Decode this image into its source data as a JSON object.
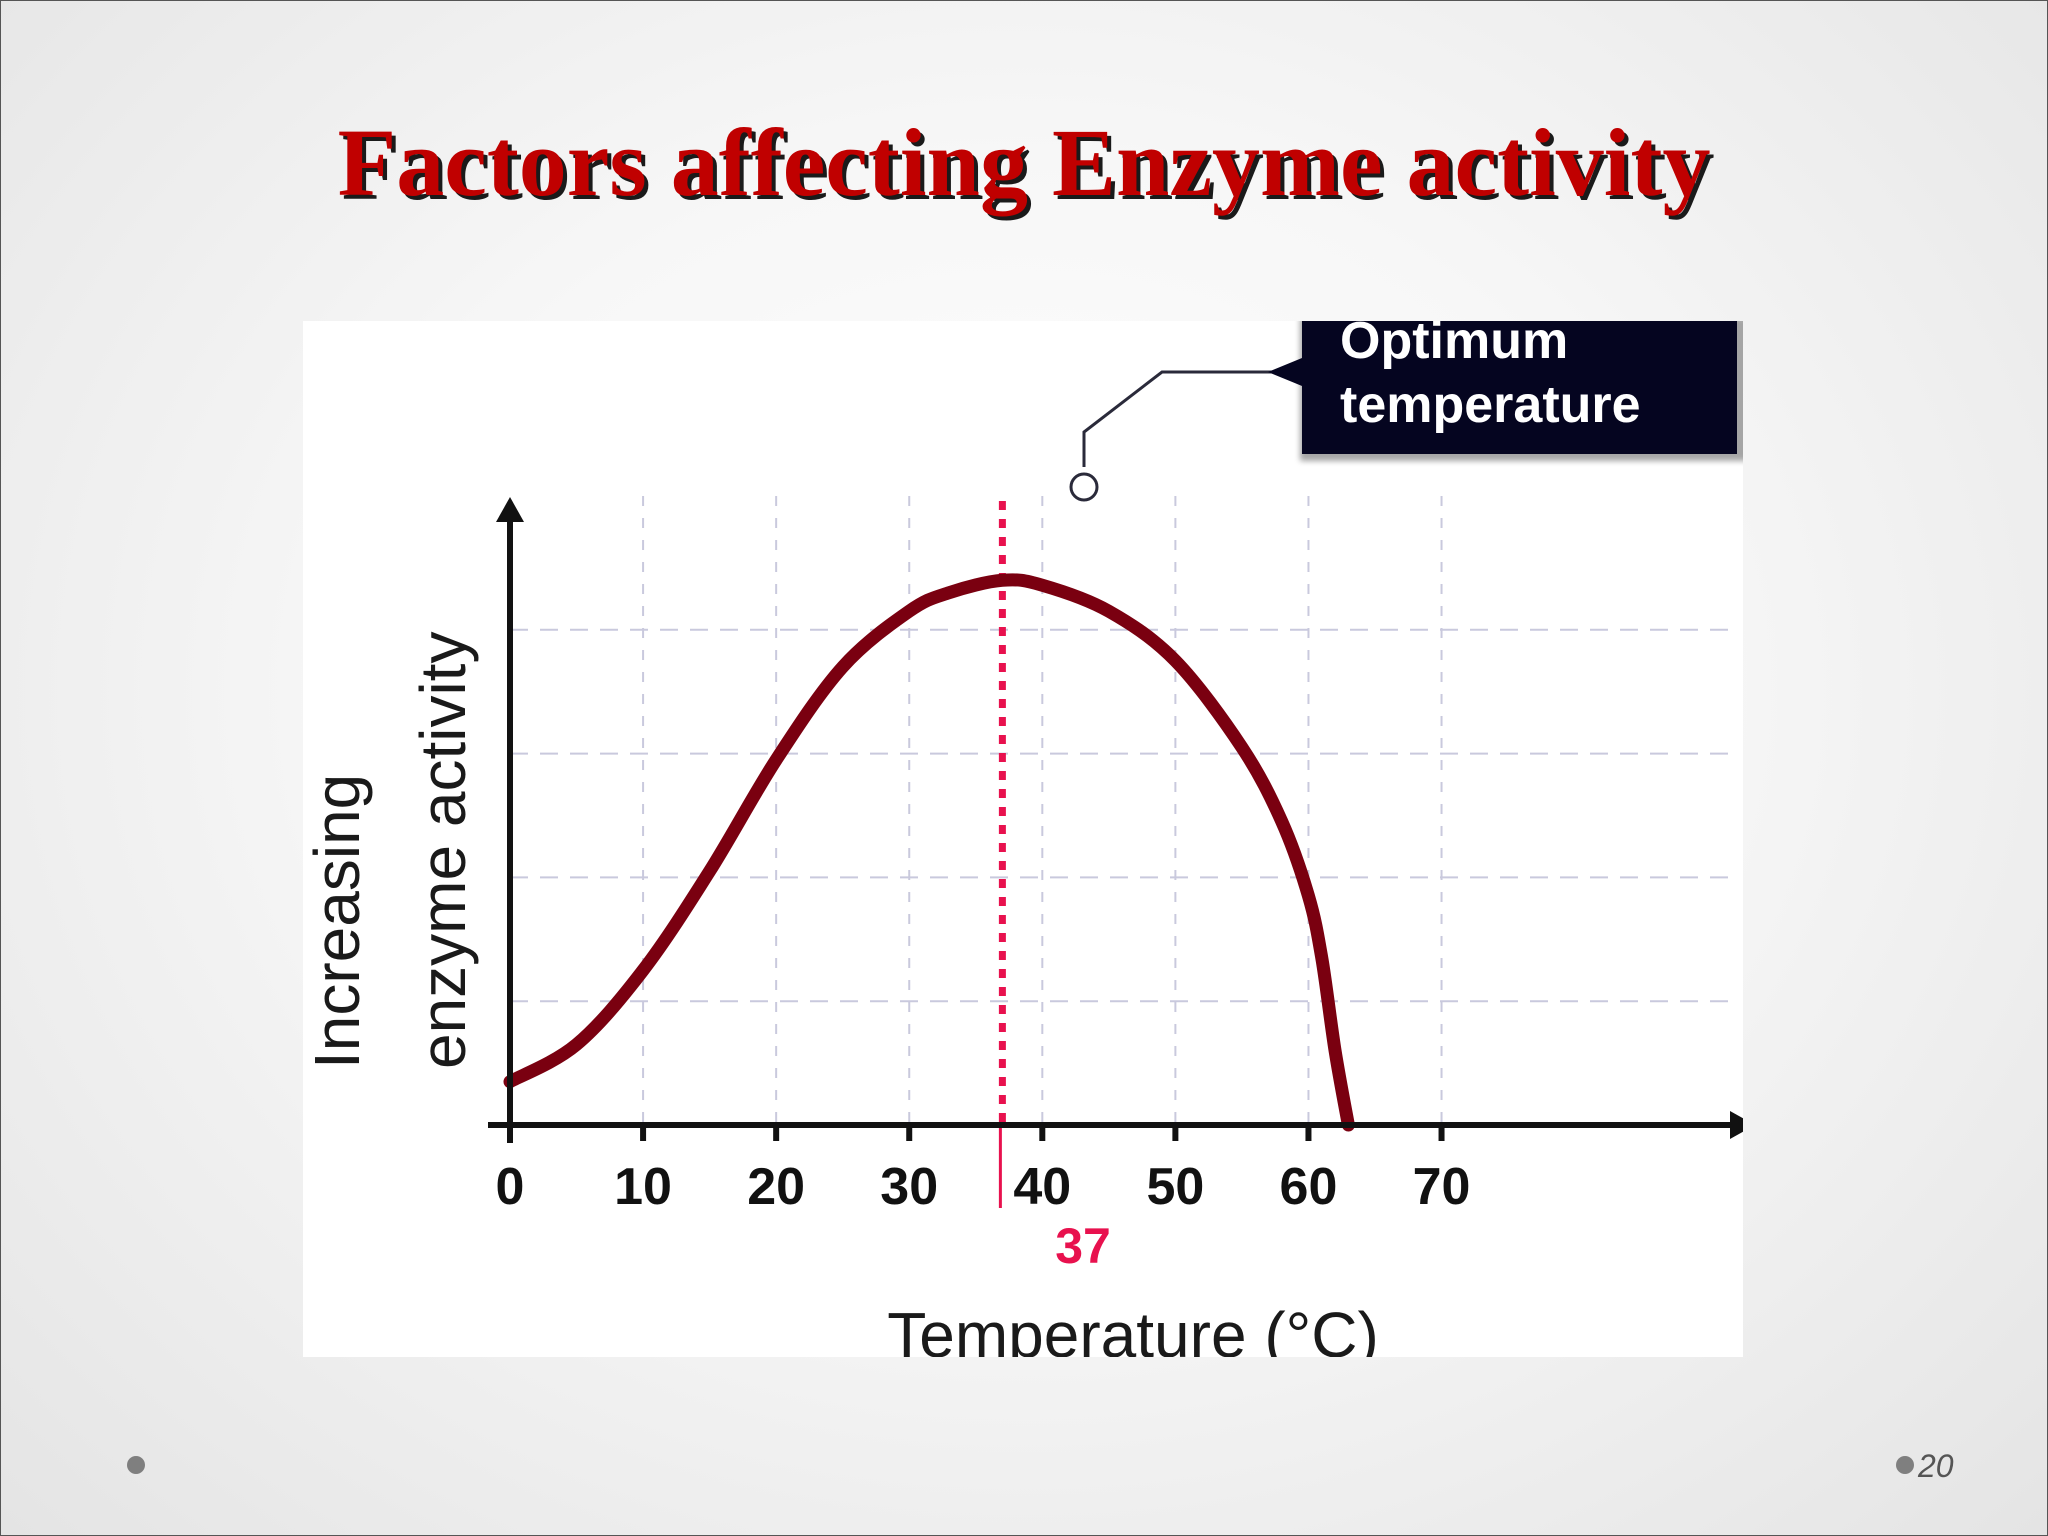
{
  "slide": {
    "title": "Factors affecting Enzyme activity",
    "page_number": "20"
  },
  "chart_data": {
    "type": "line",
    "xlabel": "Temperature (°C)",
    "ylabel_lines": [
      "Increasing",
      "enzyme activity"
    ],
    "xlim": [
      0,
      78
    ],
    "ylim": [
      0,
      5
    ],
    "x_ticks": [
      0,
      10,
      20,
      30,
      40,
      50,
      60,
      70
    ],
    "x_tick_labels": [
      "0",
      "10",
      "20",
      "30",
      "40",
      "50",
      "60",
      "70"
    ],
    "y_gridlines": [
      1,
      2,
      3,
      4
    ],
    "grid": true,
    "y_tick_labels": false,
    "series": [
      {
        "color": "#7a0010",
        "points": [
          [
            0,
            0.35
          ],
          [
            5,
            0.65
          ],
          [
            10,
            1.25
          ],
          [
            15,
            2.05
          ],
          [
            20,
            2.95
          ],
          [
            25,
            3.7
          ],
          [
            30,
            4.15
          ],
          [
            33,
            4.3
          ],
          [
            37,
            4.4
          ],
          [
            40,
            4.36
          ],
          [
            45,
            4.15
          ],
          [
            50,
            3.75
          ],
          [
            55,
            3.05
          ],
          [
            58,
            2.45
          ],
          [
            60,
            1.85
          ],
          [
            61,
            1.35
          ],
          [
            62,
            0.6
          ],
          [
            63,
            0
          ]
        ]
      }
    ],
    "marker": {
      "x": 37,
      "label": "37",
      "color": "#e8114e"
    },
    "annotation": {
      "lines": [
        "Optimum",
        "temperature"
      ],
      "box_color": "#050520"
    }
  }
}
